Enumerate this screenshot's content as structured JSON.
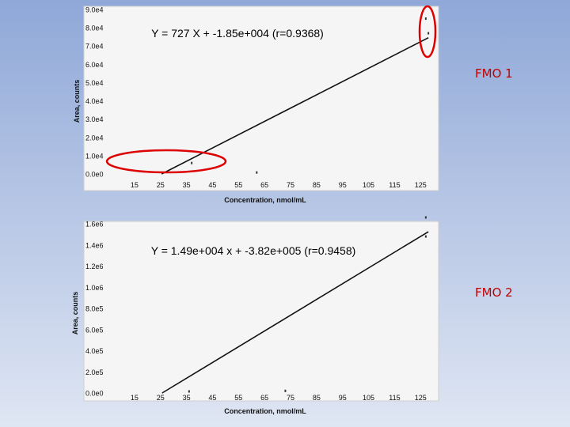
{
  "chart_data": [
    {
      "type": "scatter",
      "label": "FMO 1",
      "equation": "Y = 727 X + -1.85e+004 (r=0.9368)",
      "xlabel": "Concentration, nmol/mL",
      "ylabel": "Area, counts",
      "x_ticks": [
        "15",
        "25",
        "35",
        "45",
        "55",
        "65",
        "75",
        "85",
        "95",
        "105",
        "115",
        "125"
      ],
      "y_ticks": [
        "0.0e0",
        "1.0e4",
        "2.0e4",
        "3.0e4",
        "4.0e4",
        "5.0e4",
        "6.0e4",
        "7.0e4",
        "8.0e4",
        "9.0e4"
      ],
      "xlim": [
        5,
        131
      ],
      "ylim": [
        0,
        90000
      ],
      "fit": {
        "slope": 727,
        "intercept": -18500
      },
      "points": [
        {
          "x": 37,
          "y": 6000
        },
        {
          "x": 62,
          "y": 800
        },
        {
          "x": 127,
          "y": 85000
        },
        {
          "x": 128,
          "y": 77000
        }
      ],
      "annotations": [
        "red-ellipse-low-points",
        "red-ellipse-high-points"
      ],
      "grid": false,
      "colors": {
        "line": "#111111",
        "annotation": "#dd0000",
        "plot_bg": "#f5f5f5"
      }
    },
    {
      "type": "scatter",
      "label": "FMO 2",
      "equation": "Y = 1.49e+004 x + -3.82e+005 (r=0.9458)",
      "xlabel": "Concentration, nmol/mL",
      "ylabel": "Area, counts",
      "x_ticks": [
        "15",
        "25",
        "35",
        "45",
        "55",
        "65",
        "75",
        "85",
        "95",
        "105",
        "115",
        "125"
      ],
      "y_ticks": [
        "0.0e0",
        "2.0e5",
        "4.0e5",
        "6.0e5",
        "8.0e5",
        "1.0e6",
        "1.2e6",
        "1.4e6",
        "1.6e6"
      ],
      "xlim": [
        5,
        131
      ],
      "ylim": [
        0,
        1600000
      ],
      "fit": {
        "slope": 14900,
        "intercept": -382000
      },
      "points": [
        {
          "x": 36,
          "y": 15000
        },
        {
          "x": 73,
          "y": 20000
        },
        {
          "x": 127,
          "y": 1660000
        },
        {
          "x": 127,
          "y": 1480000
        }
      ],
      "annotations": [],
      "grid": false,
      "colors": {
        "line": "#111111",
        "annotation": "#dd0000",
        "plot_bg": "#f5f5f5"
      }
    }
  ]
}
